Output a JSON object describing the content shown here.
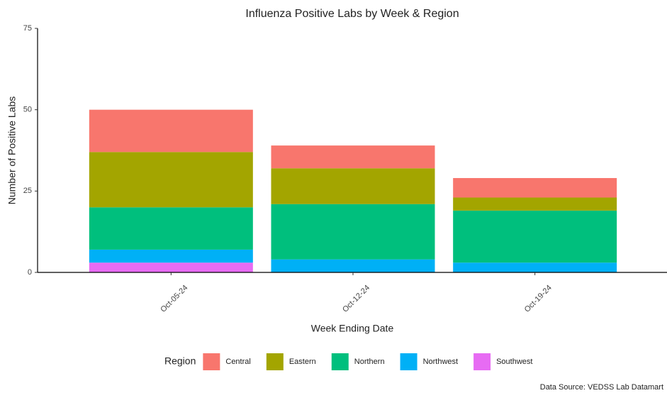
{
  "chart_data": {
    "type": "stacked_bar",
    "title": "Influenza Positive Labs by Week & Region",
    "x_label": "Week Ending Date",
    "y_label": "Number of Positive Labs",
    "legend_title": "Region",
    "source": "Data Source: VEDSS Lab Datamart",
    "categories": [
      "Oct-05-24",
      "Oct-12-24",
      "Oct-19-24"
    ],
    "series": [
      {
        "name": "Central",
        "color": "#F8766D",
        "values": [
          13,
          7,
          6
        ]
      },
      {
        "name": "Eastern",
        "color": "#A3A500",
        "values": [
          17,
          11,
          4
        ]
      },
      {
        "name": "Northern",
        "color": "#00BF7D",
        "values": [
          13,
          17,
          16
        ]
      },
      {
        "name": "Northwest",
        "color": "#00B0F6",
        "values": [
          4,
          4,
          3
        ]
      },
      {
        "name": "Southwest",
        "color": "#E76BF3",
        "values": [
          3,
          0,
          0
        ]
      }
    ],
    "ylim": [
      0,
      75
    ],
    "yticks": [
      0,
      25,
      50,
      75
    ],
    "legend_position": "bottom",
    "grid": false
  }
}
